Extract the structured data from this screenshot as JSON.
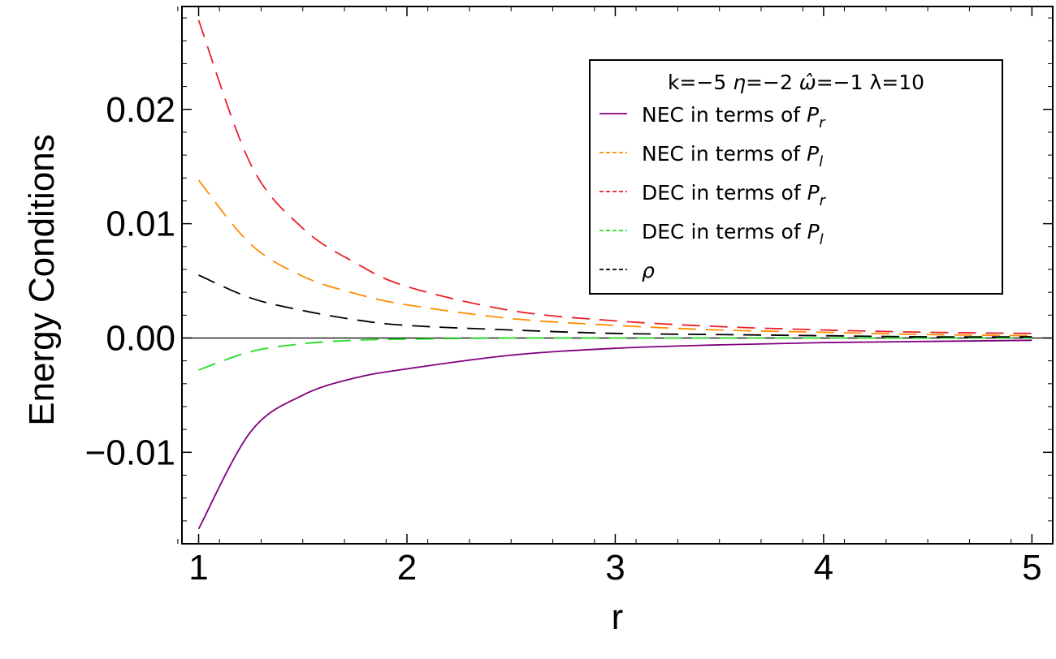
{
  "chart_data": {
    "type": "line",
    "title": "",
    "xlabel": "r",
    "ylabel": "Energy Conditions",
    "xlim": [
      0.92,
      5.1
    ],
    "ylim": [
      -0.018,
      0.029
    ],
    "x_ticks": [
      1,
      2,
      3,
      4,
      5
    ],
    "x_tick_labels": [
      "1",
      "2",
      "3",
      "4",
      "5"
    ],
    "y_ticks": [
      -0.01,
      0.0,
      0.01,
      0.02
    ],
    "y_tick_labels": [
      "−0.01",
      "0.00",
      "0.01",
      "0.02"
    ],
    "grid": false,
    "zero_line": true,
    "legend": {
      "placement": "top-right",
      "title": "k=−5 η=−2 ω̂=−1 λ=10",
      "title_parts": [
        "k=−5 ",
        "η",
        "=−2 ",
        "ω̂",
        "=−1 λ=10"
      ]
    },
    "series": [
      {
        "name": "NEC in terms of Pr",
        "label_prefix": "NEC in terms of ",
        "label_var": "P",
        "label_sub": "r",
        "color": "#800080",
        "dash": "solid",
        "x": [
          1.0,
          1.25,
          1.5,
          1.75,
          2.0,
          2.5,
          3.0,
          3.5,
          4.0,
          4.5,
          5.0
        ],
        "y": [
          -0.0167,
          -0.0082,
          -0.005,
          -0.0035,
          -0.0027,
          -0.0015,
          -0.0009,
          -0.0006,
          -0.0004,
          -0.0003,
          -0.0002
        ]
      },
      {
        "name": "NEC in terms of Pl",
        "label_prefix": "NEC in terms of ",
        "label_var": "P",
        "label_sub": "l",
        "color": "#ff8c00",
        "dash": "dashed",
        "x": [
          1.0,
          1.25,
          1.5,
          1.75,
          2.0,
          2.5,
          3.0,
          3.5,
          4.0,
          4.5,
          5.0
        ],
        "y": [
          0.0138,
          0.0082,
          0.0054,
          0.0039,
          0.0029,
          0.0017,
          0.0011,
          0.0007,
          0.0005,
          0.0003,
          0.0002
        ]
      },
      {
        "name": "DEC in terms of Pr",
        "label_prefix": "DEC in terms of ",
        "label_var": "P",
        "label_sub": "r",
        "color": "#e8202a",
        "dash": "dashed",
        "x": [
          1.0,
          1.25,
          1.5,
          1.75,
          2.0,
          2.5,
          3.0,
          3.5,
          4.0,
          4.5,
          5.0
        ],
        "y": [
          0.0278,
          0.0152,
          0.0096,
          0.0066,
          0.0045,
          0.0024,
          0.0015,
          0.001,
          0.0007,
          0.0005,
          0.0004
        ]
      },
      {
        "name": "DEC in terms of Pl",
        "label_prefix": "DEC in terms of ",
        "label_var": "P",
        "label_sub": "l",
        "color": "#22dd22",
        "dash": "dashed",
        "x": [
          1.0,
          1.25,
          1.5,
          1.75,
          2.0,
          2.5,
          3.0,
          3.5,
          4.0,
          4.5,
          5.0
        ],
        "y": [
          -0.0028,
          -0.0012,
          -0.0005,
          -0.0002,
          -0.0001,
          0.0,
          0.0,
          0.0,
          0.0,
          0.0,
          0.0
        ]
      },
      {
        "name": "ρ",
        "label_prefix": "",
        "label_var": "ρ",
        "label_sub": "",
        "color": "#000000",
        "dash": "dashed",
        "x": [
          1.0,
          1.25,
          1.5,
          1.75,
          2.0,
          2.5,
          3.0,
          3.5,
          4.0,
          4.5,
          5.0
        ],
        "y": [
          0.0055,
          0.0035,
          0.0024,
          0.0016,
          0.0011,
          0.0007,
          0.0004,
          0.0003,
          0.0002,
          0.0001,
          0.0001
        ]
      }
    ]
  }
}
